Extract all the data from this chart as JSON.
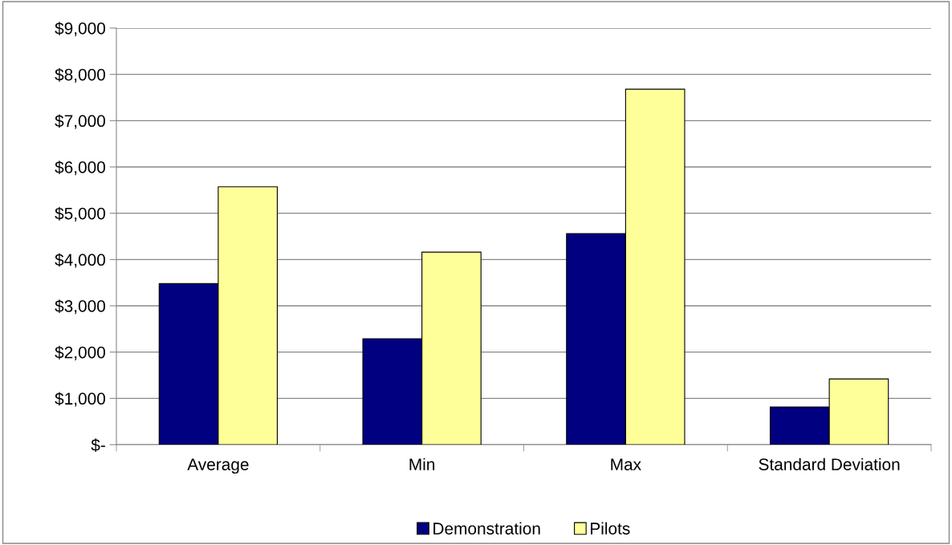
{
  "chart_data": {
    "type": "bar",
    "categories": [
      "Average",
      "Min",
      "Max",
      "Standard Deviation"
    ],
    "series": [
      {
        "name": "Demonstration",
        "color": "#000080",
        "values": [
          3480,
          2290,
          4560,
          815
        ]
      },
      {
        "name": "Pilots",
        "color": "#ffff99",
        "values": [
          5570,
          4160,
          7680,
          1420
        ]
      }
    ],
    "ylim": [
      0,
      9000
    ],
    "yticks": [
      {
        "value": 0,
        "label": "$-"
      },
      {
        "value": 1000,
        "label": "$1,000"
      },
      {
        "value": 2000,
        "label": "$2,000"
      },
      {
        "value": 3000,
        "label": "$3,000"
      },
      {
        "value": 4000,
        "label": "$4,000"
      },
      {
        "value": 5000,
        "label": "$5,000"
      },
      {
        "value": 6000,
        "label": "$6,000"
      },
      {
        "value": 7000,
        "label": "$7,000"
      },
      {
        "value": 8000,
        "label": "$8,000"
      },
      {
        "value": 9000,
        "label": "$9,000"
      }
    ],
    "grid": "y",
    "legend": "bottom"
  }
}
